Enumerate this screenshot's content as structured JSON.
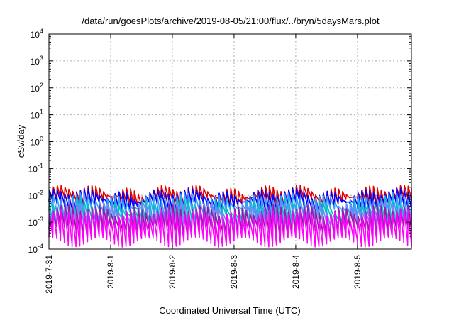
{
  "chart_data": {
    "type": "line",
    "title": "/data/run/goesPlots/archive/2019-08-05/21:00/flux/../bryn/5daysMars.plot",
    "xlabel": "Coordinated Universal Time (UTC)",
    "ylabel": "cSv/day",
    "y_scale": "log",
    "ylim": [
      0.0001,
      10000
    ],
    "xlim": [
      "2019-07-31 00:00",
      "2019-08-05 21:00"
    ],
    "x_ticks": [
      "2019-7-31",
      "2019-8-1",
      "2019-8-2",
      "2019-8-3",
      "2019-8-4",
      "2019-8-5"
    ],
    "y_ticks": [
      {
        "base": "10",
        "exp": "-4"
      },
      {
        "base": "10",
        "exp": "-3"
      },
      {
        "base": "10",
        "exp": "-2"
      },
      {
        "base": "10",
        "exp": "-1"
      },
      {
        "base": "10",
        "exp": "0"
      },
      {
        "base": "10",
        "exp": "1"
      },
      {
        "base": "10",
        "exp": "2"
      },
      {
        "base": "10",
        "exp": "3"
      },
      {
        "base": "10",
        "exp": "4"
      }
    ],
    "grid": true,
    "legend": "none",
    "pattern": {
      "description_hours_per_cycle": 1.5,
      "shape": "sawtooth"
    },
    "series": [
      {
        "color": "#e00000",
        "peak": 0.016,
        "trough": 0.006
      },
      {
        "color": "#0000ff",
        "peak": 0.012,
        "trough": 0.004
      },
      {
        "color": "#3aa0ff",
        "peak": 0.008,
        "trough": 0.0022
      },
      {
        "color": "#00c0c0",
        "peak": 0.005,
        "trough": 0.0012
      },
      {
        "color": "#8080ff",
        "peak": 0.004,
        "trough": 0.0008
      },
      {
        "color": "#9020a0",
        "peak": 0.003,
        "trough": 0.0005
      },
      {
        "color": "#ff00ff",
        "peak": 0.002,
        "trough": 0.0002
      }
    ]
  }
}
